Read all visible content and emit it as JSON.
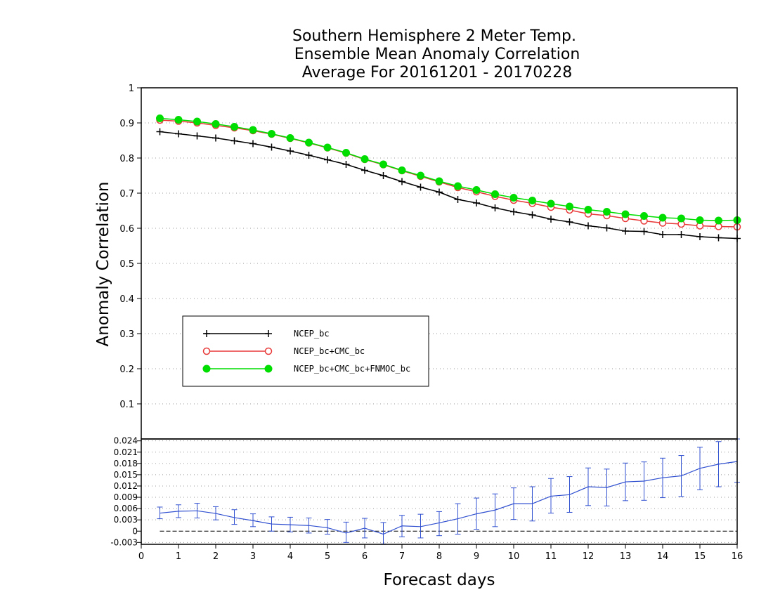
{
  "chart_data": [
    {
      "type": "line",
      "title": [
        "Southern Hemisphere 2 Meter Temp.",
        "Ensemble Mean Anomaly Correlation",
        "Average For 20161201 - 20170228"
      ],
      "ylabel": "Anomaly Correlation",
      "xlabel": "Forecast days",
      "xlim": [
        0,
        16
      ],
      "ylim": [
        0,
        1
      ],
      "xticks": [
        "0",
        "1",
        "2",
        "3",
        "4",
        "5",
        "6",
        "7",
        "8",
        "9",
        "10",
        "11",
        "12",
        "13",
        "14",
        "15",
        "16"
      ],
      "yticks": [
        "0.1",
        "0.2",
        "0.3",
        "0.4",
        "0.5",
        "0.6",
        "0.7",
        "0.8",
        "0.9",
        "1"
      ],
      "grid": true,
      "legend_placement": "lower-left",
      "x": [
        0.5,
        1,
        1.5,
        2,
        2.5,
        3,
        3.5,
        4,
        4.5,
        5,
        5.5,
        6,
        6.5,
        7,
        7.5,
        8,
        8.5,
        9,
        9.5,
        10,
        10.5,
        11,
        11.5,
        12,
        12.5,
        13,
        13.5,
        14,
        14.5,
        15,
        15.5,
        16
      ],
      "series": [
        {
          "name": "NCEP_bc",
          "color": "#000000",
          "marker": "plus",
          "values": [
            0.875,
            0.869,
            0.863,
            0.857,
            0.849,
            0.841,
            0.831,
            0.82,
            0.808,
            0.795,
            0.782,
            0.765,
            0.75,
            0.733,
            0.717,
            0.703,
            0.682,
            0.672,
            0.658,
            0.647,
            0.638,
            0.626,
            0.618,
            0.607,
            0.601,
            0.592,
            0.591,
            0.582,
            0.582,
            0.576,
            0.573,
            0.571
          ]
        },
        {
          "name": "NCEP_bc+CMC_bc",
          "color": "#e83838",
          "marker": "open-circle",
          "values": [
            0.908,
            0.905,
            0.9,
            0.893,
            0.886,
            0.878,
            0.868,
            0.856,
            0.843,
            0.829,
            0.814,
            0.796,
            0.781,
            0.764,
            0.748,
            0.732,
            0.716,
            0.704,
            0.691,
            0.68,
            0.671,
            0.66,
            0.652,
            0.641,
            0.636,
            0.628,
            0.621,
            0.615,
            0.612,
            0.607,
            0.605,
            0.604
          ]
        },
        {
          "name": "NCEP_bc+CMC_bc+FNMOC_bc",
          "color": "#00dd00",
          "marker": "filled-circle",
          "values": [
            0.913,
            0.909,
            0.904,
            0.897,
            0.889,
            0.88,
            0.869,
            0.857,
            0.844,
            0.83,
            0.815,
            0.797,
            0.782,
            0.765,
            0.75,
            0.734,
            0.72,
            0.709,
            0.697,
            0.687,
            0.679,
            0.67,
            0.662,
            0.653,
            0.647,
            0.64,
            0.635,
            0.63,
            0.628,
            0.623,
            0.622,
            0.623
          ]
        }
      ]
    },
    {
      "type": "line",
      "ylim": [
        -0.0035,
        0.0245
      ],
      "xlim": [
        0,
        16
      ],
      "yticks": [
        "-0.003",
        "0",
        "0.003",
        "0.006",
        "0.009",
        "0.012",
        "0.015",
        "0.018",
        "0.021",
        "0.024"
      ],
      "series": [
        {
          "color": "#3050d0",
          "x": [
            0.5,
            1,
            1.5,
            2,
            2.5,
            3,
            3.5,
            4,
            4.5,
            5,
            5.5,
            6,
            6.5,
            7,
            7.5,
            8,
            8.5,
            9,
            9.5,
            10,
            10.5,
            11,
            11.5,
            12,
            12.5,
            13,
            13.5,
            14,
            14.5,
            15,
            15.5,
            16
          ],
          "values": [
            0.0048,
            0.0053,
            0.0054,
            0.0047,
            0.0036,
            0.0028,
            0.0019,
            0.0017,
            0.0015,
            0.0009,
            -0.0005,
            0.0008,
            -0.0008,
            0.0014,
            0.0012,
            0.0022,
            0.0033,
            0.0046,
            0.0056,
            0.0073,
            0.0073,
            0.0093,
            0.0097,
            0.0118,
            0.0116,
            0.0131,
            0.0133,
            0.0142,
            0.0147,
            0.0167,
            0.0178,
            0.0185
          ],
          "error_low": [
            0.0033,
            0.0036,
            0.0035,
            0.003,
            0.0018,
            0.0012,
            0.0,
            -0.0002,
            -0.0005,
            -0.0008,
            -0.003,
            -0.0018,
            -0.0034,
            -0.0015,
            -0.0018,
            -0.0012,
            -0.0008,
            0.0005,
            0.0012,
            0.0031,
            0.0027,
            0.0048,
            0.005,
            0.0068,
            0.0067,
            0.0081,
            0.0082,
            0.0089,
            0.0092,
            0.011,
            0.0118,
            0.013
          ],
          "error_high": [
            0.0064,
            0.007,
            0.0074,
            0.0065,
            0.0057,
            0.0046,
            0.0038,
            0.0037,
            0.0035,
            0.0031,
            0.0024,
            0.0034,
            0.0023,
            0.0042,
            0.0045,
            0.0052,
            0.0073,
            0.0088,
            0.0099,
            0.0115,
            0.0118,
            0.014,
            0.0145,
            0.0168,
            0.0165,
            0.0181,
            0.0184,
            0.0194,
            0.0201,
            0.0223,
            0.0238,
            0.0245
          ]
        }
      ],
      "reference_line": 0
    }
  ]
}
